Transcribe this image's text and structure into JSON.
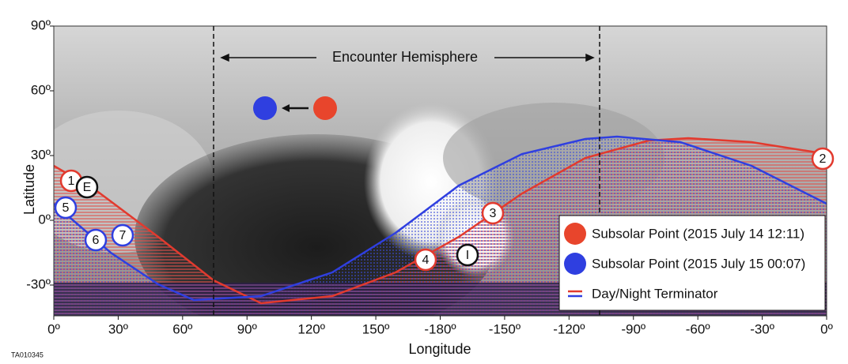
{
  "axes": {
    "y_label": "Latitude",
    "x_label": "Longitude",
    "y_ticks": [
      "90º",
      "60º",
      "30º",
      "0º",
      "-30º"
    ],
    "x_ticks": [
      "0º",
      "30º",
      "60º",
      "90º",
      "120º",
      "150º",
      "-180º",
      "-150º",
      "-120º",
      "-90º",
      "-60º",
      "-30º",
      "0º"
    ]
  },
  "annotations": {
    "encounter": "Encounter Hemisphere",
    "markers": [
      "1",
      "E",
      "5",
      "6",
      "7",
      "4",
      "I",
      "3",
      "2"
    ]
  },
  "legend": [
    "Subsolar Point (2015 July 14 12:11)",
    "Subsolar Point (2015 July 15 00:07)",
    "Day/Night Terminator"
  ],
  "figure_id": "TA010345"
}
